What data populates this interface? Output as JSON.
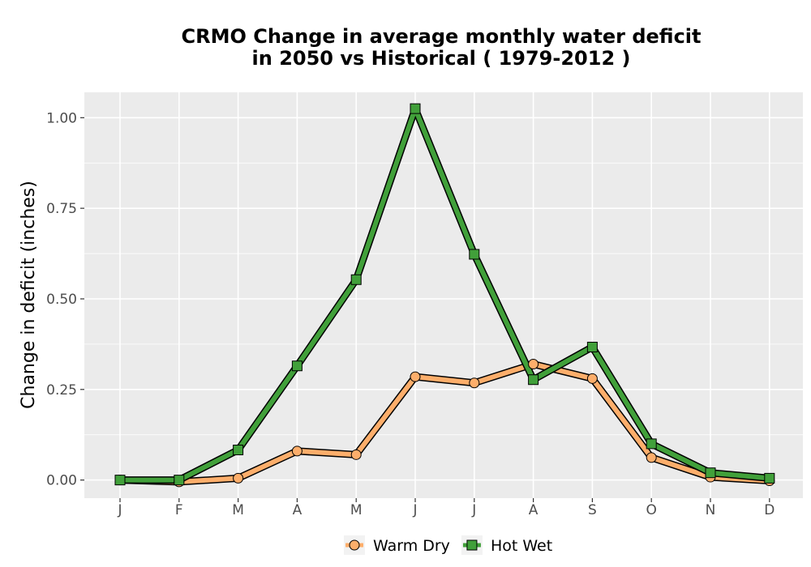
{
  "chart_data": {
    "type": "line",
    "title_line1": "CRMO  Change in average monthly water deficit",
    "title_line2": "in 2050 vs Historical ( 1979-2012 )",
    "xlabel": "",
    "ylabel": "Change in deficit (inches)",
    "categories": [
      "J",
      "F",
      "M",
      "A",
      "M",
      "J",
      "J",
      "A",
      "S",
      "O",
      "N",
      "D"
    ],
    "y_ticks": [
      "0.00",
      "0.25",
      "0.50",
      "0.75",
      "1.00"
    ],
    "ylim": [
      -0.05,
      1.07
    ],
    "grid": true,
    "legend_position": "bottom",
    "series": [
      {
        "name": "Warm Dry",
        "line_color": "#fdae6b",
        "marker": "circle",
        "values": [
          0.0,
          -0.005,
          0.005,
          0.08,
          0.07,
          0.285,
          0.268,
          0.32,
          0.28,
          0.062,
          0.008,
          -0.002
        ]
      },
      {
        "name": "Hot Wet",
        "line_color": "#41a03a",
        "marker": "square",
        "values": [
          0.0,
          0.0,
          0.083,
          0.315,
          0.553,
          1.025,
          0.623,
          0.277,
          0.367,
          0.1,
          0.02,
          0.005
        ]
      }
    ]
  }
}
